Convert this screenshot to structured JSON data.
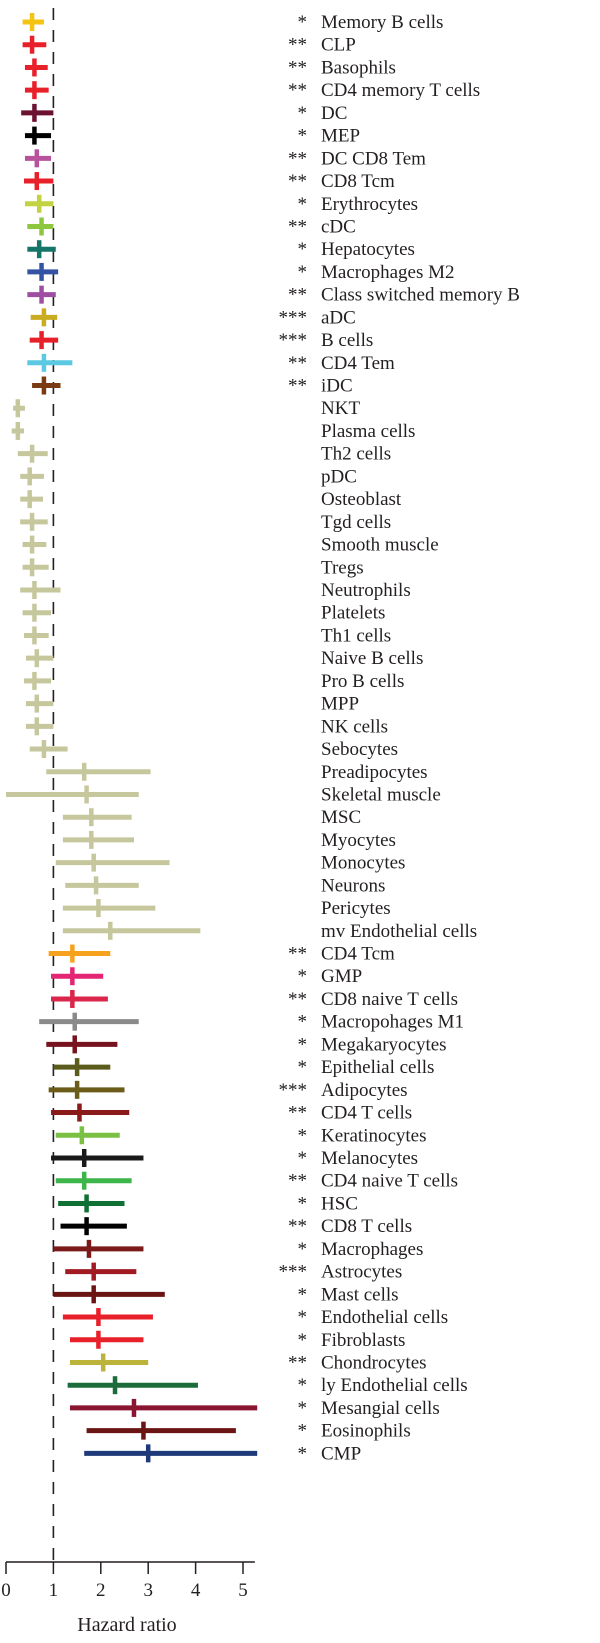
{
  "chart_data": {
    "type": "forest",
    "xlabel": "Hazard ratio",
    "xlim": [
      0,
      5.35
    ],
    "xticks": [
      0,
      1,
      2,
      3,
      4,
      5
    ],
    "reference_line": 1,
    "rows": [
      {
        "label": "Memory B cells",
        "sig": "*",
        "hr": 0.55,
        "lo": 0.35,
        "hi": 0.8,
        "color": "#f5c311"
      },
      {
        "label": "CLP",
        "sig": "**",
        "hr": 0.55,
        "lo": 0.35,
        "hi": 0.85,
        "color": "#e8202a"
      },
      {
        "label": "Basophils",
        "sig": "**",
        "hr": 0.6,
        "lo": 0.4,
        "hi": 0.88,
        "color": "#e8202a"
      },
      {
        "label": "CD4 memory T cells",
        "sig": "**",
        "hr": 0.6,
        "lo": 0.4,
        "hi": 0.9,
        "color": "#e8202a"
      },
      {
        "label": "DC",
        "sig": "*",
        "hr": 0.6,
        "lo": 0.32,
        "hi": 1.0,
        "color": "#6b1232"
      },
      {
        "label": "MEP",
        "sig": "*",
        "hr": 0.6,
        "lo": 0.4,
        "hi": 0.95,
        "color": "#000000"
      },
      {
        "label": "DC CD8 Tem",
        "sig": "**",
        "hr": 0.65,
        "lo": 0.4,
        "hi": 0.95,
        "color": "#b8529c"
      },
      {
        "label": "CD8 Tcm",
        "sig": "**",
        "hr": 0.65,
        "lo": 0.38,
        "hi": 1.0,
        "color": "#e8202a"
      },
      {
        "label": "Erythrocytes",
        "sig": "*",
        "hr": 0.7,
        "lo": 0.4,
        "hi": 1.0,
        "color": "#c2d241"
      },
      {
        "label": "cDC",
        "sig": "**",
        "hr": 0.75,
        "lo": 0.45,
        "hi": 1.0,
        "color": "#8dc63f"
      },
      {
        "label": "Hepatocytes",
        "sig": "*",
        "hr": 0.7,
        "lo": 0.45,
        "hi": 1.05,
        "color": "#137669"
      },
      {
        "label": "Macrophages M2",
        "sig": "*",
        "hr": 0.75,
        "lo": 0.45,
        "hi": 1.1,
        "color": "#3553a3"
      },
      {
        "label": "Class switched memory B",
        "sig": "**",
        "hr": 0.75,
        "lo": 0.45,
        "hi": 1.05,
        "color": "#9e4fa2"
      },
      {
        "label": "aDC",
        "sig": "***",
        "hr": 0.8,
        "lo": 0.52,
        "hi": 1.08,
        "color": "#c9ac20"
      },
      {
        "label": "B cells",
        "sig": "***",
        "hr": 0.75,
        "lo": 0.5,
        "hi": 1.1,
        "color": "#e8202a"
      },
      {
        "label": "CD4 Tem",
        "sig": "**",
        "hr": 0.8,
        "lo": 0.45,
        "hi": 1.4,
        "color": "#5bc9e1"
      },
      {
        "label": "iDC",
        "sig": "**",
        "hr": 0.8,
        "lo": 0.55,
        "hi": 1.15,
        "color": "#7a3a12"
      },
      {
        "label": "NKT",
        "sig": "",
        "hr": 0.25,
        "lo": 0.15,
        "hi": 0.4,
        "color": "#c6c79d"
      },
      {
        "label": "Plasma cells",
        "sig": "",
        "hr": 0.25,
        "lo": 0.12,
        "hi": 0.38,
        "color": "#c6c79d"
      },
      {
        "label": "Th2 cells",
        "sig": "",
        "hr": 0.55,
        "lo": 0.25,
        "hi": 0.88,
        "color": "#c6c79d"
      },
      {
        "label": "pDC",
        "sig": "",
        "hr": 0.5,
        "lo": 0.3,
        "hi": 0.8,
        "color": "#c6c79d"
      },
      {
        "label": "Osteoblast",
        "sig": "",
        "hr": 0.5,
        "lo": 0.3,
        "hi": 0.78,
        "color": "#c6c79d"
      },
      {
        "label": "Tgd cells",
        "sig": "",
        "hr": 0.55,
        "lo": 0.3,
        "hi": 0.88,
        "color": "#c6c79d"
      },
      {
        "label": "Smooth muscle",
        "sig": "",
        "hr": 0.55,
        "lo": 0.35,
        "hi": 0.85,
        "color": "#c6c79d"
      },
      {
        "label": "Tregs",
        "sig": "",
        "hr": 0.55,
        "lo": 0.35,
        "hi": 0.9,
        "color": "#c6c79d"
      },
      {
        "label": "Neutrophils",
        "sig": "",
        "hr": 0.6,
        "lo": 0.3,
        "hi": 1.15,
        "color": "#c6c79d"
      },
      {
        "label": "Platelets",
        "sig": "",
        "hr": 0.6,
        "lo": 0.35,
        "hi": 0.95,
        "color": "#c6c79d"
      },
      {
        "label": "Th1 cells",
        "sig": "",
        "hr": 0.6,
        "lo": 0.38,
        "hi": 0.9,
        "color": "#c6c79d"
      },
      {
        "label": "Naive B cells",
        "sig": "",
        "hr": 0.65,
        "lo": 0.42,
        "hi": 1.0,
        "color": "#c6c79d"
      },
      {
        "label": "Pro B cells",
        "sig": "",
        "hr": 0.6,
        "lo": 0.38,
        "hi": 0.95,
        "color": "#c6c79d"
      },
      {
        "label": "MPP",
        "sig": "",
        "hr": 0.65,
        "lo": 0.42,
        "hi": 1.0,
        "color": "#c6c79d"
      },
      {
        "label": "NK cells",
        "sig": "",
        "hr": 0.65,
        "lo": 0.42,
        "hi": 1.0,
        "color": "#c6c79d"
      },
      {
        "label": "Sebocytes",
        "sig": "",
        "hr": 0.8,
        "lo": 0.5,
        "hi": 1.3,
        "color": "#c6c79d"
      },
      {
        "label": "Preadipocytes",
        "sig": "",
        "hr": 1.65,
        "lo": 0.85,
        "hi": 3.05,
        "color": "#c6c79d"
      },
      {
        "label": "Skeletal muscle",
        "sig": "",
        "hr": 1.7,
        "lo": 0.0,
        "hi": 2.8,
        "color": "#c6c79d"
      },
      {
        "label": "MSC",
        "sig": "",
        "hr": 1.8,
        "lo": 1.2,
        "hi": 2.65,
        "color": "#c6c79d"
      },
      {
        "label": "Myocytes",
        "sig": "",
        "hr": 1.8,
        "lo": 1.2,
        "hi": 2.7,
        "color": "#c6c79d"
      },
      {
        "label": "Monocytes",
        "sig": "",
        "hr": 1.85,
        "lo": 1.05,
        "hi": 3.45,
        "color": "#c6c79d"
      },
      {
        "label": "Neurons",
        "sig": "",
        "hr": 1.9,
        "lo": 1.25,
        "hi": 2.8,
        "color": "#c6c79d"
      },
      {
        "label": "Pericytes",
        "sig": "",
        "hr": 1.95,
        "lo": 1.2,
        "hi": 3.15,
        "color": "#c6c79d"
      },
      {
        "label": "mv Endothelial cells",
        "sig": "",
        "hr": 2.2,
        "lo": 1.2,
        "hi": 4.1,
        "color": "#c6c79d"
      },
      {
        "label": "CD4 Tcm",
        "sig": "**",
        "hr": 1.4,
        "lo": 0.9,
        "hi": 2.2,
        "color": "#f6a21d"
      },
      {
        "label": "GMP",
        "sig": "*",
        "hr": 1.4,
        "lo": 0.95,
        "hi": 2.05,
        "color": "#e32574"
      },
      {
        "label": "CD8 naive T cells",
        "sig": "**",
        "hr": 1.4,
        "lo": 0.95,
        "hi": 2.15,
        "color": "#d9264a"
      },
      {
        "label": "Macropohages M1",
        "sig": "*",
        "hr": 1.45,
        "lo": 0.7,
        "hi": 2.8,
        "color": "#8a8a8a"
      },
      {
        "label": "Megakaryocytes",
        "sig": "*",
        "hr": 1.45,
        "lo": 0.85,
        "hi": 2.35,
        "color": "#76131f"
      },
      {
        "label": "Epithelial cells",
        "sig": "*",
        "hr": 1.5,
        "lo": 1.0,
        "hi": 2.2,
        "color": "#5b5b1c"
      },
      {
        "label": "Adipocytes",
        "sig": "***",
        "hr": 1.5,
        "lo": 0.9,
        "hi": 2.5,
        "color": "#6b5c1a"
      },
      {
        "label": "CD4 T cells",
        "sig": "**",
        "hr": 1.55,
        "lo": 0.95,
        "hi": 2.6,
        "color": "#8b1a1a"
      },
      {
        "label": "Keratinocytes",
        "sig": "*",
        "hr": 1.6,
        "lo": 1.05,
        "hi": 2.4,
        "color": "#7ac143"
      },
      {
        "label": "Melanocytes",
        "sig": "*",
        "hr": 1.65,
        "lo": 0.95,
        "hi": 2.9,
        "color": "#1a1a1a"
      },
      {
        "label": "CD4 naive T cells",
        "sig": "**",
        "hr": 1.65,
        "lo": 1.05,
        "hi": 2.65,
        "color": "#3cb54a"
      },
      {
        "label": "HSC",
        "sig": "*",
        "hr": 1.7,
        "lo": 1.1,
        "hi": 2.5,
        "color": "#0f7033"
      },
      {
        "label": "CD8 T cells",
        "sig": "**",
        "hr": 1.7,
        "lo": 1.15,
        "hi": 2.55,
        "color": "#000000"
      },
      {
        "label": "Macrophages",
        "sig": "*",
        "hr": 1.75,
        "lo": 1.0,
        "hi": 2.9,
        "color": "#7a1a1a"
      },
      {
        "label": "Astrocytes",
        "sig": "***",
        "hr": 1.85,
        "lo": 1.25,
        "hi": 2.75,
        "color": "#a01b22"
      },
      {
        "label": "Mast cells",
        "sig": "*",
        "hr": 1.85,
        "lo": 1.0,
        "hi": 3.35,
        "color": "#6b1414"
      },
      {
        "label": "Endothelial cells",
        "sig": "*",
        "hr": 1.95,
        "lo": 1.2,
        "hi": 3.1,
        "color": "#e8202a"
      },
      {
        "label": "Fibroblasts",
        "sig": "*",
        "hr": 1.95,
        "lo": 1.35,
        "hi": 2.9,
        "color": "#e8202a"
      },
      {
        "label": "Chondrocytes",
        "sig": "**",
        "hr": 2.05,
        "lo": 1.35,
        "hi": 3.0,
        "color": "#bcb33a"
      },
      {
        "label": "ly Endothelial cells",
        "sig": "*",
        "hr": 2.3,
        "lo": 1.3,
        "hi": 4.05,
        "color": "#1b6b3b"
      },
      {
        "label": "Mesangial cells",
        "sig": "*",
        "hr": 2.7,
        "lo": 1.35,
        "hi": 5.3,
        "color": "#8a1530"
      },
      {
        "label": "Eosinophils",
        "sig": "*",
        "hr": 2.9,
        "lo": 1.7,
        "hi": 4.85,
        "color": "#6b1414"
      },
      {
        "label": "CMP",
        "sig": "*",
        "hr": 3.0,
        "lo": 1.65,
        "hi": 5.3,
        "color": "#1f3a78"
      }
    ]
  }
}
